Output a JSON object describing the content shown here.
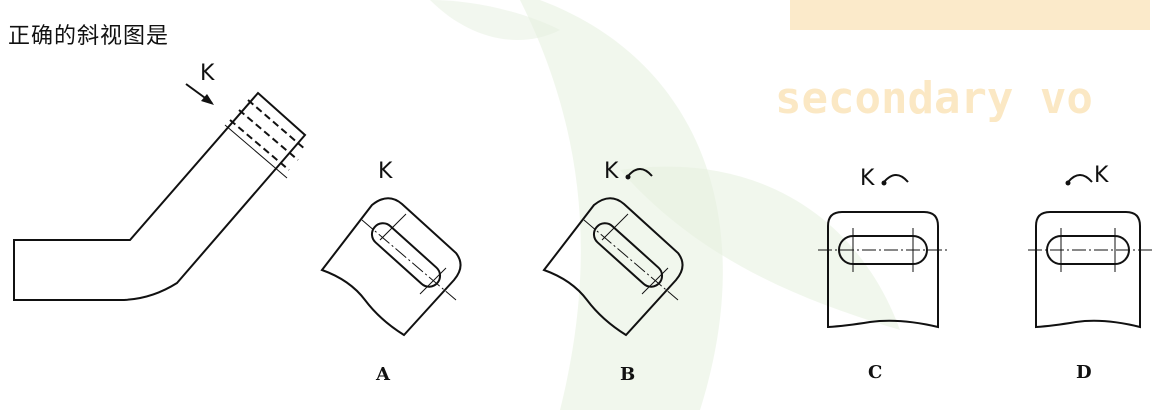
{
  "question": "正确的斜视图是",
  "view_label": "K",
  "options": [
    {
      "id": "A",
      "label": "A",
      "view_label": "K",
      "rotation_mark": ""
    },
    {
      "id": "B",
      "label": "B",
      "view_label": "K",
      "rotation_mark": "↶"
    },
    {
      "id": "C",
      "label": "C",
      "view_label": "K",
      "rotation_mark": "↶"
    },
    {
      "id": "D",
      "label": "D",
      "view_label": "K",
      "rotation_mark": "↷"
    }
  ],
  "watermark": {
    "text": "secondary vo",
    "color": "#fbe8c4",
    "leaf_color": "#e6f0df"
  }
}
